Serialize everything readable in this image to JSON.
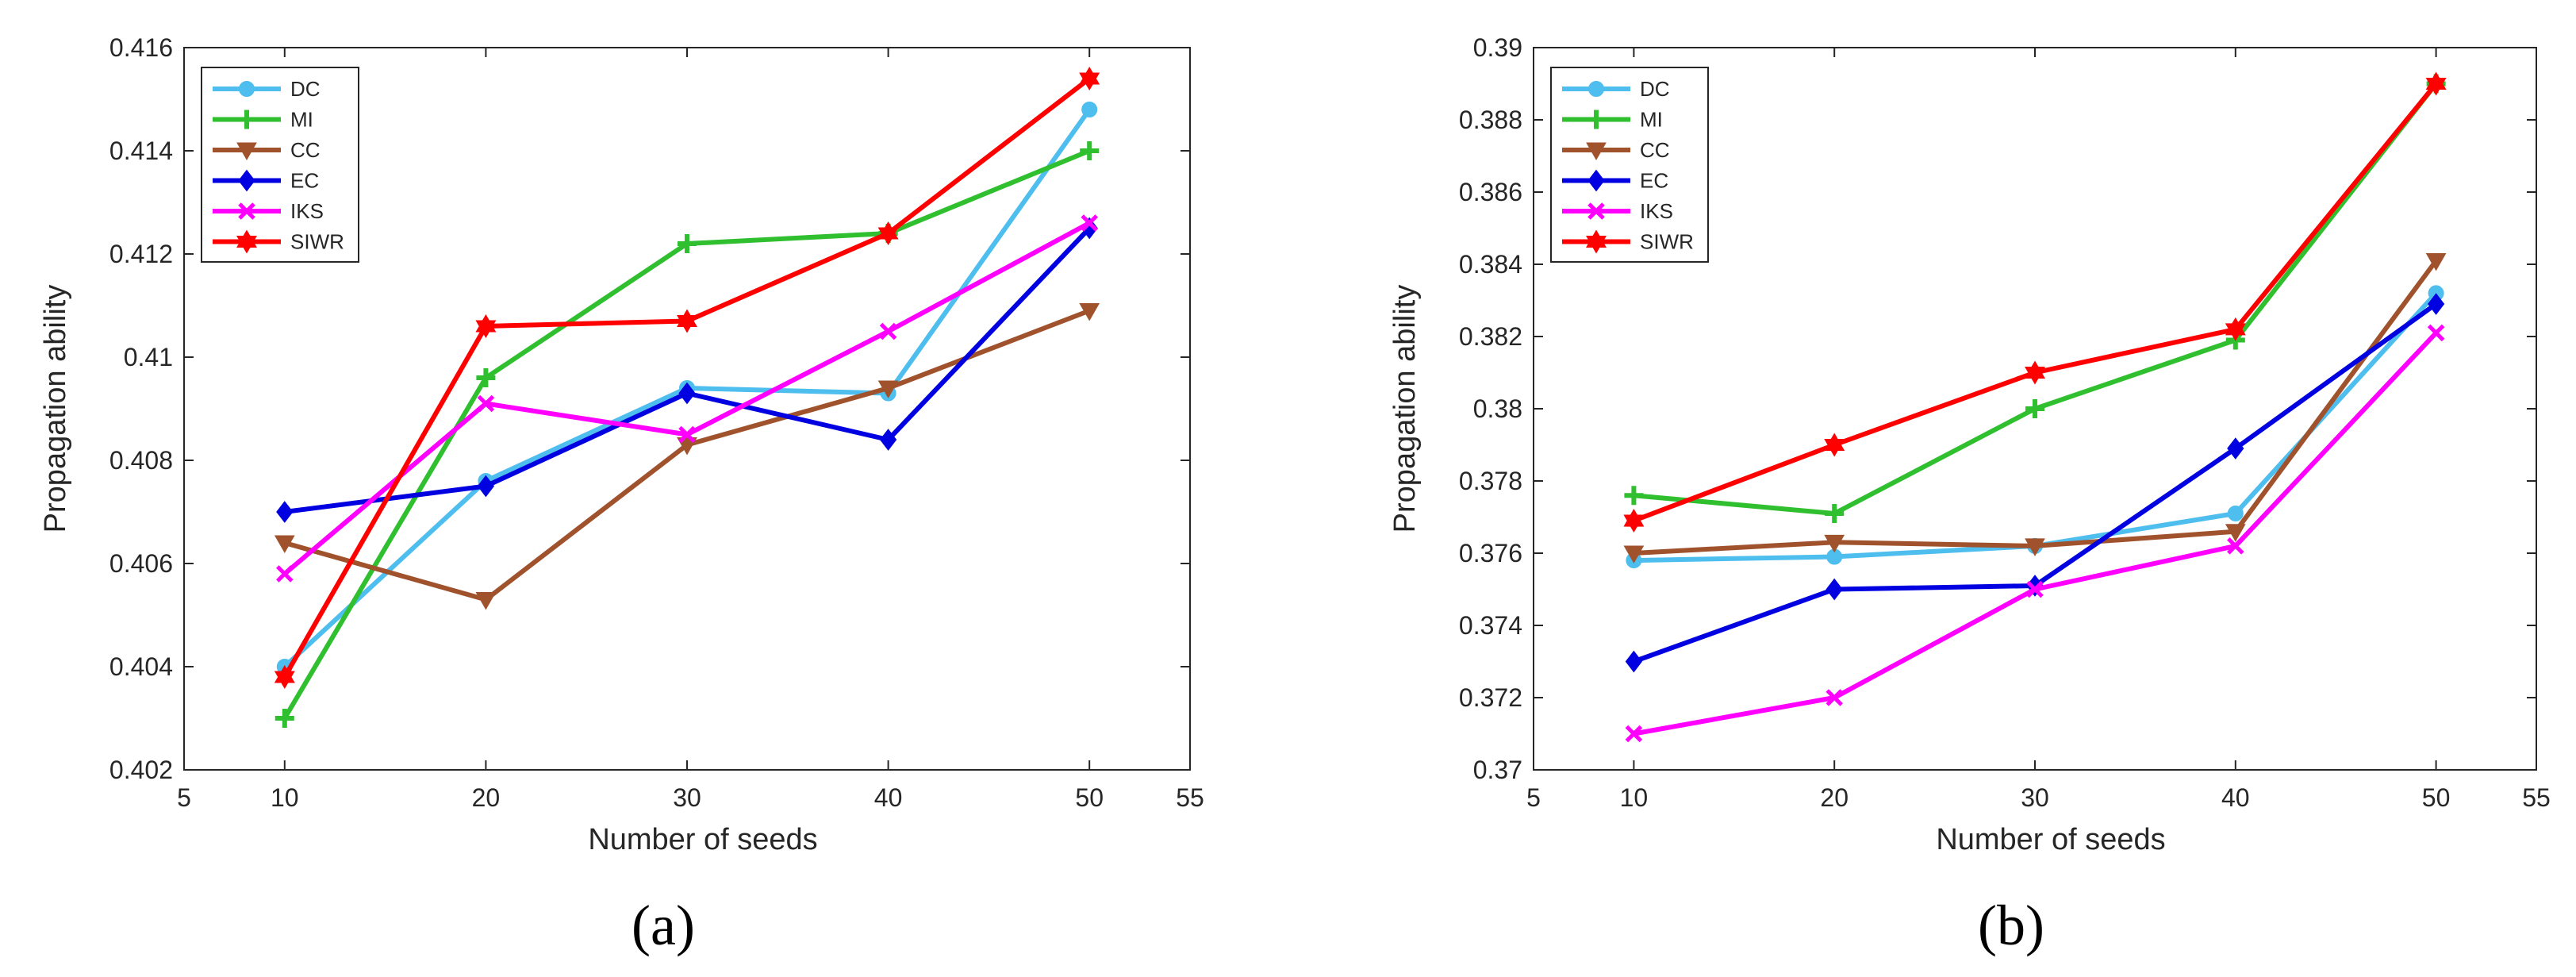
{
  "chart_data": [
    {
      "type": "line",
      "caption": "(a)",
      "xlabel": "Number of seeds",
      "ylabel": "Propagation ability",
      "xlim": [
        5,
        55
      ],
      "ylim": [
        0.402,
        0.416
      ],
      "xticks": [
        "5",
        "10",
        "20",
        "30",
        "40",
        "50",
        "55"
      ],
      "yticks": [
        "0.402",
        "0.404",
        "0.406",
        "0.408",
        "0.41",
        "0.412",
        "0.414",
        "0.416"
      ],
      "legend_position": "top-left",
      "x": [
        10,
        20,
        30,
        40,
        50
      ],
      "series": [
        {
          "name": "DC",
          "color": "#4DBEEE",
          "marker": "circle",
          "values": [
            0.404,
            0.4076,
            0.4094,
            0.4093,
            0.4148
          ]
        },
        {
          "name": "MI",
          "color": "#2FBF2F",
          "marker": "plus",
          "values": [
            0.403,
            0.4096,
            0.4122,
            0.4124,
            0.414
          ]
        },
        {
          "name": "CC",
          "color": "#A0522D",
          "marker": "triangle-down",
          "values": [
            0.4064,
            0.4053,
            0.4083,
            0.4094,
            0.4109
          ]
        },
        {
          "name": "EC",
          "color": "#0000E0",
          "marker": "diamond",
          "values": [
            0.407,
            0.4075,
            0.4093,
            0.4084,
            0.4125
          ]
        },
        {
          "name": "IKS",
          "color": "#FF00FF",
          "marker": "x",
          "values": [
            0.4058,
            0.4091,
            0.4085,
            0.4105,
            0.4126
          ]
        },
        {
          "name": "SIWR",
          "color": "#FF0000",
          "marker": "hexagram",
          "values": [
            0.4038,
            0.4106,
            0.4107,
            0.4124,
            0.4154
          ]
        }
      ]
    },
    {
      "type": "line",
      "caption": "(b)",
      "xlabel": "Number of seeds",
      "ylabel": "Propagation ability",
      "xlim": [
        5,
        55
      ],
      "ylim": [
        0.37,
        0.39
      ],
      "xticks": [
        "5",
        "10",
        "20",
        "30",
        "40",
        "50",
        "55"
      ],
      "yticks": [
        "0.37",
        "0.372",
        "0.374",
        "0.376",
        "0.378",
        "0.38",
        "0.382",
        "0.384",
        "0.386",
        "0.388",
        "0.39"
      ],
      "legend_position": "top-left",
      "x": [
        10,
        20,
        30,
        40,
        50
      ],
      "series": [
        {
          "name": "DC",
          "color": "#4DBEEE",
          "marker": "circle",
          "values": [
            0.3758,
            0.3759,
            0.3762,
            0.3771,
            0.3832
          ]
        },
        {
          "name": "MI",
          "color": "#2FBF2F",
          "marker": "plus",
          "values": [
            0.3776,
            0.3771,
            0.38,
            0.3819,
            0.389
          ]
        },
        {
          "name": "CC",
          "color": "#A0522D",
          "marker": "triangle-down",
          "values": [
            0.376,
            0.3763,
            0.3762,
            0.3766,
            0.3841
          ]
        },
        {
          "name": "EC",
          "color": "#0000E0",
          "marker": "diamond",
          "values": [
            0.373,
            0.375,
            0.3751,
            0.3789,
            0.3829
          ]
        },
        {
          "name": "IKS",
          "color": "#FF00FF",
          "marker": "x",
          "values": [
            0.371,
            0.372,
            0.375,
            0.3762,
            0.3821
          ]
        },
        {
          "name": "SIWR",
          "color": "#FF0000",
          "marker": "hexagram",
          "values": [
            0.3769,
            0.379,
            0.381,
            0.3822,
            0.389
          ]
        }
      ]
    }
  ]
}
